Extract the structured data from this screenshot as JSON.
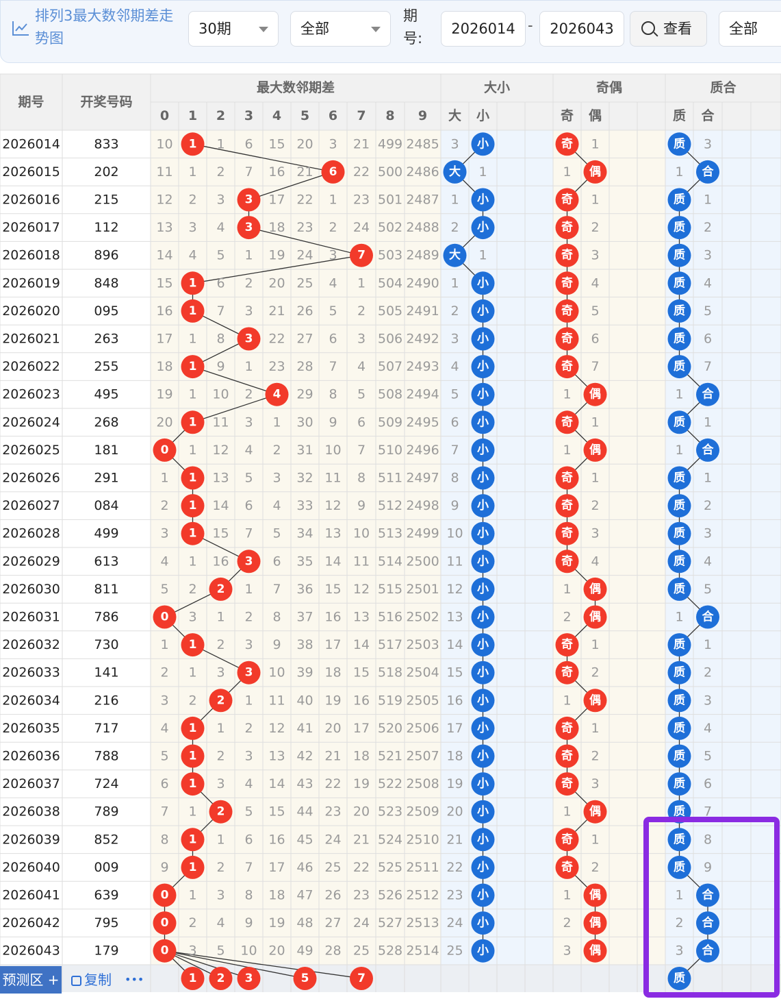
{
  "toolbar": {
    "title": "排列3最大数邻期差走势图",
    "period_select": "30期",
    "filter_select": "全部",
    "issue_label": "期号:",
    "issue_from": "2026014",
    "issue_to": "2026043",
    "search_label": "查看",
    "filter2_select": "全部"
  },
  "colors": {
    "red_ball": "#f23a2a",
    "blue_ball": "#1e6fd8",
    "band_light": "#fbf8ee",
    "band_blue": "#eef5fd",
    "header_bg": "#f1f1f1"
  },
  "table": {
    "col_issue": "期号",
    "col_number": "开奖号码",
    "group_diff": "最大数邻期差",
    "group_size": "大小",
    "group_parity": "奇偶",
    "group_prime": "质合",
    "digits": [
      "0",
      "1",
      "2",
      "3",
      "4",
      "5",
      "6",
      "7",
      "8",
      "9"
    ],
    "size_labels": [
      "大",
      "小"
    ],
    "parity_labels": [
      "奇",
      "偶"
    ],
    "prime_labels": [
      "质",
      "合"
    ],
    "rows": [
      {
        "issue": "2026014",
        "num": "833",
        "diff": [
          10,
          "1",
          1,
          6,
          15,
          20,
          3,
          21,
          499,
          2485
        ],
        "size": [
          3,
          "小"
        ],
        "parity": [
          "奇",
          1
        ],
        "prime": [
          "质",
          3
        ]
      },
      {
        "issue": "2026015",
        "num": "202",
        "diff": [
          11,
          1,
          2,
          7,
          16,
          21,
          "6",
          22,
          500,
          2486
        ],
        "size": [
          "大",
          1
        ],
        "parity": [
          1,
          "偶"
        ],
        "prime": [
          1,
          "合"
        ]
      },
      {
        "issue": "2026016",
        "num": "215",
        "diff": [
          12,
          2,
          3,
          "3",
          17,
          22,
          1,
          23,
          501,
          2487
        ],
        "size": [
          1,
          "小"
        ],
        "parity": [
          "奇",
          1
        ],
        "prime": [
          "质",
          1
        ]
      },
      {
        "issue": "2026017",
        "num": "112",
        "diff": [
          13,
          3,
          4,
          "3",
          18,
          23,
          2,
          24,
          502,
          2488
        ],
        "size": [
          2,
          "小"
        ],
        "parity": [
          "奇",
          2
        ],
        "prime": [
          "质",
          2
        ]
      },
      {
        "issue": "2026018",
        "num": "896",
        "diff": [
          14,
          4,
          5,
          1,
          19,
          24,
          3,
          "7",
          503,
          2489
        ],
        "size": [
          "大",
          1
        ],
        "parity": [
          "奇",
          3
        ],
        "prime": [
          "质",
          3
        ]
      },
      {
        "issue": "2026019",
        "num": "848",
        "diff": [
          15,
          "1",
          6,
          2,
          20,
          25,
          4,
          1,
          504,
          2490
        ],
        "size": [
          1,
          "小"
        ],
        "parity": [
          "奇",
          4
        ],
        "prime": [
          "质",
          4
        ]
      },
      {
        "issue": "2026020",
        "num": "095",
        "diff": [
          16,
          "1",
          7,
          3,
          21,
          26,
          5,
          2,
          505,
          2491
        ],
        "size": [
          2,
          "小"
        ],
        "parity": [
          "奇",
          5
        ],
        "prime": [
          "质",
          5
        ]
      },
      {
        "issue": "2026021",
        "num": "263",
        "diff": [
          17,
          1,
          8,
          "3",
          22,
          27,
          6,
          3,
          506,
          2492
        ],
        "size": [
          3,
          "小"
        ],
        "parity": [
          "奇",
          6
        ],
        "prime": [
          "质",
          6
        ]
      },
      {
        "issue": "2026022",
        "num": "255",
        "diff": [
          18,
          "1",
          9,
          1,
          23,
          28,
          7,
          4,
          507,
          2493
        ],
        "size": [
          4,
          "小"
        ],
        "parity": [
          "奇",
          7
        ],
        "prime": [
          "质",
          7
        ]
      },
      {
        "issue": "2026023",
        "num": "495",
        "diff": [
          19,
          1,
          10,
          2,
          "4",
          29,
          8,
          5,
          508,
          2494
        ],
        "size": [
          5,
          "小"
        ],
        "parity": [
          1,
          "偶"
        ],
        "prime": [
          1,
          "合"
        ]
      },
      {
        "issue": "2026024",
        "num": "268",
        "diff": [
          20,
          "1",
          11,
          3,
          1,
          30,
          9,
          6,
          509,
          2495
        ],
        "size": [
          6,
          "小"
        ],
        "parity": [
          "奇",
          1
        ],
        "prime": [
          "质",
          1
        ]
      },
      {
        "issue": "2026025",
        "num": "181",
        "diff": [
          "0",
          1,
          12,
          4,
          2,
          31,
          10,
          7,
          510,
          2496
        ],
        "size": [
          7,
          "小"
        ],
        "parity": [
          1,
          "偶"
        ],
        "prime": [
          1,
          "合"
        ]
      },
      {
        "issue": "2026026",
        "num": "291",
        "diff": [
          1,
          "1",
          13,
          5,
          3,
          32,
          11,
          8,
          511,
          2497
        ],
        "size": [
          8,
          "小"
        ],
        "parity": [
          "奇",
          1
        ],
        "prime": [
          "质",
          1
        ]
      },
      {
        "issue": "2026027",
        "num": "084",
        "diff": [
          2,
          "1",
          14,
          6,
          4,
          33,
          12,
          9,
          512,
          2498
        ],
        "size": [
          9,
          "小"
        ],
        "parity": [
          "奇",
          2
        ],
        "prime": [
          "质",
          2
        ]
      },
      {
        "issue": "2026028",
        "num": "499",
        "diff": [
          3,
          "1",
          15,
          7,
          5,
          34,
          13,
          10,
          513,
          2499
        ],
        "size": [
          10,
          "小"
        ],
        "parity": [
          "奇",
          3
        ],
        "prime": [
          "质",
          3
        ]
      },
      {
        "issue": "2026029",
        "num": "613",
        "diff": [
          4,
          1,
          16,
          "3",
          6,
          35,
          14,
          11,
          514,
          2500
        ],
        "size": [
          11,
          "小"
        ],
        "parity": [
          "奇",
          4
        ],
        "prime": [
          "质",
          4
        ]
      },
      {
        "issue": "2026030",
        "num": "811",
        "diff": [
          5,
          2,
          "2",
          1,
          7,
          36,
          15,
          12,
          515,
          2501
        ],
        "size": [
          12,
          "小"
        ],
        "parity": [
          1,
          "偶"
        ],
        "prime": [
          "质",
          5
        ]
      },
      {
        "issue": "2026031",
        "num": "786",
        "diff": [
          "0",
          3,
          1,
          2,
          8,
          37,
          16,
          13,
          516,
          2502
        ],
        "size": [
          13,
          "小"
        ],
        "parity": [
          2,
          "偶"
        ],
        "prime": [
          1,
          "合"
        ]
      },
      {
        "issue": "2026032",
        "num": "730",
        "diff": [
          1,
          "1",
          2,
          3,
          9,
          38,
          17,
          14,
          517,
          2503
        ],
        "size": [
          14,
          "小"
        ],
        "parity": [
          "奇",
          1
        ],
        "prime": [
          "质",
          1
        ]
      },
      {
        "issue": "2026033",
        "num": "141",
        "diff": [
          2,
          1,
          3,
          "3",
          10,
          39,
          18,
          15,
          518,
          2504
        ],
        "size": [
          15,
          "小"
        ],
        "parity": [
          "奇",
          2
        ],
        "prime": [
          "质",
          2
        ]
      },
      {
        "issue": "2026034",
        "num": "216",
        "diff": [
          3,
          2,
          "2",
          1,
          11,
          40,
          19,
          16,
          519,
          2505
        ],
        "size": [
          16,
          "小"
        ],
        "parity": [
          1,
          "偶"
        ],
        "prime": [
          "质",
          3
        ]
      },
      {
        "issue": "2026035",
        "num": "717",
        "diff": [
          4,
          "1",
          1,
          2,
          12,
          41,
          20,
          17,
          520,
          2506
        ],
        "size": [
          17,
          "小"
        ],
        "parity": [
          "奇",
          1
        ],
        "prime": [
          "质",
          4
        ]
      },
      {
        "issue": "2026036",
        "num": "788",
        "diff": [
          5,
          "1",
          2,
          3,
          13,
          42,
          21,
          18,
          521,
          2507
        ],
        "size": [
          18,
          "小"
        ],
        "parity": [
          "奇",
          2
        ],
        "prime": [
          "质",
          5
        ]
      },
      {
        "issue": "2026037",
        "num": "724",
        "diff": [
          6,
          "1",
          3,
          4,
          14,
          43,
          22,
          19,
          522,
          2508
        ],
        "size": [
          19,
          "小"
        ],
        "parity": [
          "奇",
          3
        ],
        "prime": [
          "质",
          6
        ]
      },
      {
        "issue": "2026038",
        "num": "789",
        "diff": [
          7,
          1,
          "2",
          5,
          15,
          44,
          23,
          20,
          523,
          2509
        ],
        "size": [
          20,
          "小"
        ],
        "parity": [
          1,
          "偶"
        ],
        "prime": [
          "质",
          7
        ]
      },
      {
        "issue": "2026039",
        "num": "852",
        "diff": [
          8,
          "1",
          1,
          6,
          16,
          45,
          24,
          21,
          524,
          2510
        ],
        "size": [
          21,
          "小"
        ],
        "parity": [
          "奇",
          1
        ],
        "prime": [
          "质",
          8
        ]
      },
      {
        "issue": "2026040",
        "num": "009",
        "diff": [
          9,
          "1",
          2,
          7,
          17,
          46,
          25,
          22,
          525,
          2511
        ],
        "size": [
          22,
          "小"
        ],
        "parity": [
          "奇",
          2
        ],
        "prime": [
          "质",
          9
        ]
      },
      {
        "issue": "2026041",
        "num": "639",
        "diff": [
          "0",
          1,
          3,
          8,
          18,
          47,
          26,
          23,
          526,
          2512
        ],
        "size": [
          23,
          "小"
        ],
        "parity": [
          1,
          "偶"
        ],
        "prime": [
          1,
          "合"
        ]
      },
      {
        "issue": "2026042",
        "num": "795",
        "diff": [
          "0",
          2,
          4,
          9,
          19,
          48,
          27,
          24,
          527,
          2513
        ],
        "size": [
          24,
          "小"
        ],
        "parity": [
          2,
          "偶"
        ],
        "prime": [
          2,
          "合"
        ]
      },
      {
        "issue": "2026043",
        "num": "179",
        "diff": [
          "0",
          3,
          5,
          10,
          20,
          49,
          28,
          25,
          528,
          2514
        ],
        "size": [
          25,
          "小"
        ],
        "parity": [
          3,
          "偶"
        ],
        "prime": [
          3,
          "合"
        ]
      }
    ]
  },
  "footer": {
    "predict_label": "预测区",
    "copy_label": "复制",
    "more_label": "•••",
    "predict_diff": [
      "1",
      "2",
      "3",
      "5",
      "7"
    ],
    "predict_prime": "质"
  }
}
